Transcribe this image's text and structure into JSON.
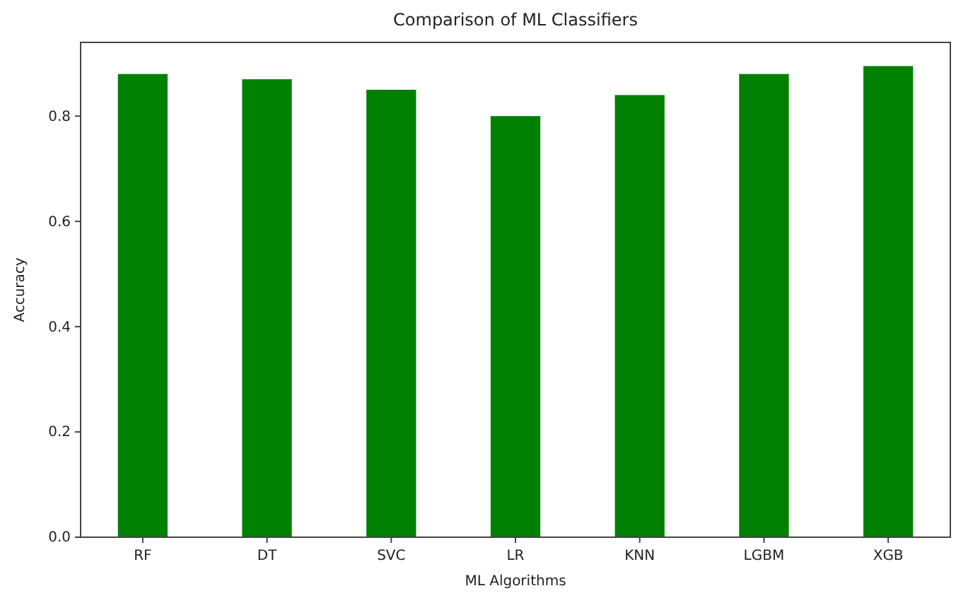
{
  "chart_data": {
    "type": "bar",
    "title": "Comparison of ML Classifiers",
    "xlabel": "ML Algorithms",
    "ylabel": "Accuracy",
    "categories": [
      "RF",
      "DT",
      "SVC",
      "LR",
      "KNN",
      "LGBM",
      "XGB"
    ],
    "values": [
      0.88,
      0.87,
      0.85,
      0.8,
      0.84,
      0.88,
      0.895
    ],
    "color": "#008000",
    "ylim": [
      0,
      0.94
    ],
    "yticks": [
      {
        "value": 0,
        "label": "0.0"
      },
      {
        "value": 0.2,
        "label": "0.2"
      },
      {
        "value": 0.4,
        "label": "0.4"
      },
      {
        "value": 0.6,
        "label": "0.6"
      },
      {
        "value": 0.8,
        "label": "0.8"
      }
    ],
    "grid": false
  }
}
